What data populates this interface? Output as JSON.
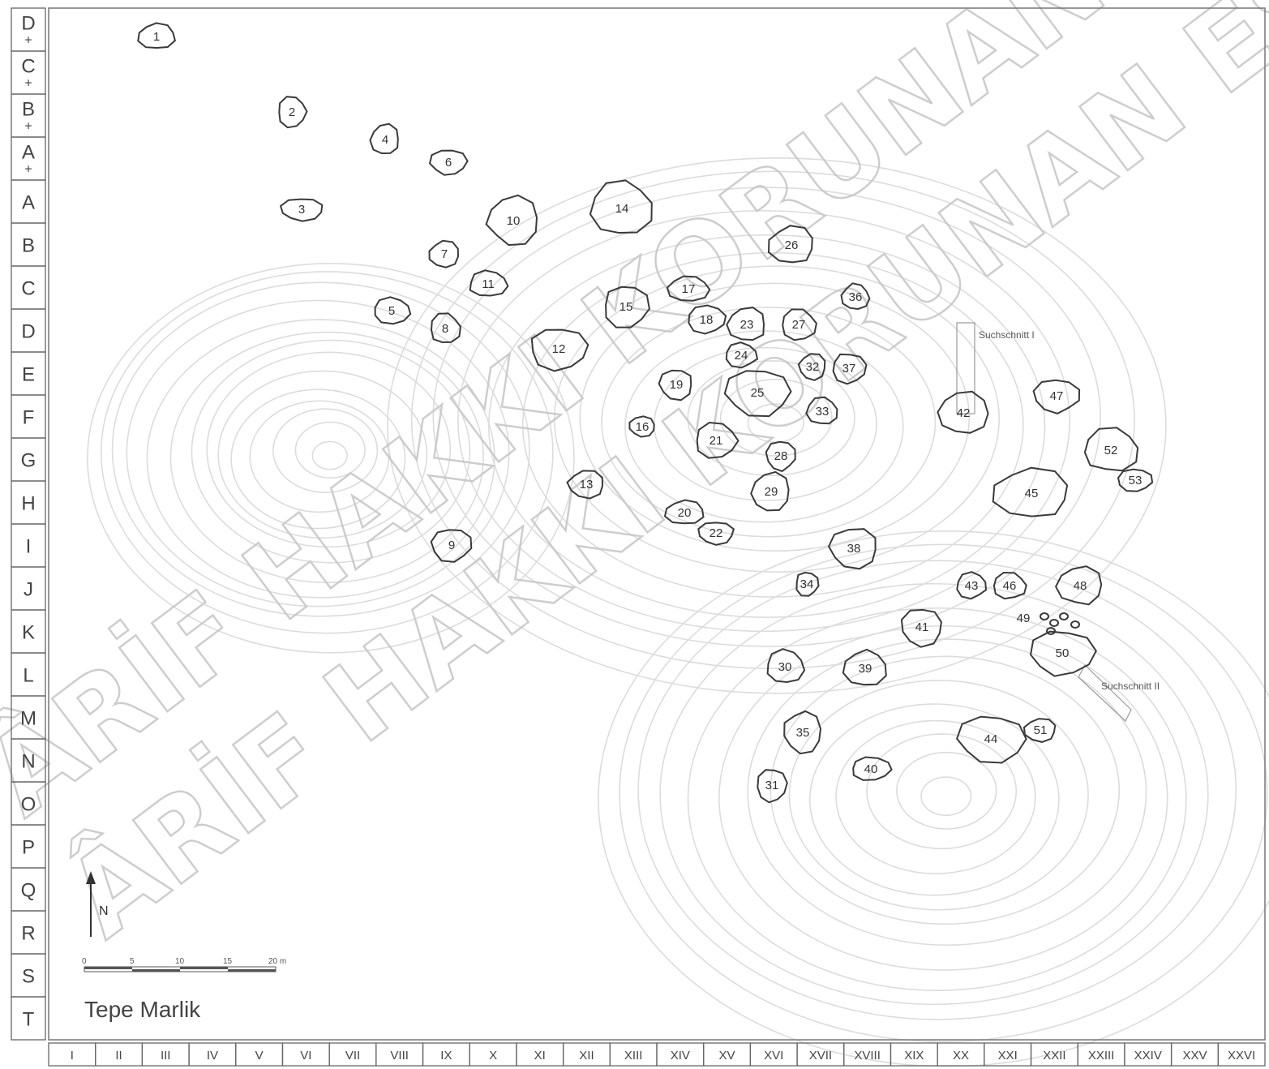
{
  "title": "Tepe Marlik",
  "north_label": "N",
  "scale": {
    "ticks": [
      "0",
      "5",
      "10",
      "15",
      "20 m"
    ]
  },
  "grid": {
    "rows": [
      "D+",
      "C+",
      "B+",
      "A+",
      "A",
      "B",
      "C",
      "D",
      "E",
      "F",
      "G",
      "H",
      "I",
      "J",
      "K",
      "L",
      "M",
      "N",
      "O",
      "P",
      "Q",
      "R",
      "S",
      "T"
    ],
    "columns": [
      "I",
      "II",
      "III",
      "IV",
      "V",
      "VI",
      "VII",
      "VIII",
      "IX",
      "X",
      "XI",
      "XII",
      "XIII",
      "XIV",
      "XV",
      "XVI",
      "XVII",
      "XVIII",
      "XIX",
      "XX",
      "XXI",
      "XXII",
      "XXIII",
      "XXIV",
      "XXV",
      "XXVI"
    ]
  },
  "trenches": [
    "Suchschnitt I",
    "Suchschnitt II"
  ],
  "tombs": [
    "1",
    "2",
    "3",
    "4",
    "5",
    "6",
    "7",
    "8",
    "9",
    "10",
    "11",
    "12",
    "13",
    "14",
    "15",
    "16",
    "17",
    "18",
    "19",
    "20",
    "21",
    "22",
    "23",
    "24",
    "25",
    "26",
    "27",
    "28",
    "29",
    "30",
    "31",
    "32",
    "33",
    "34",
    "35",
    "36",
    "37",
    "38",
    "39",
    "40",
    "41",
    "42",
    "43",
    "44",
    "45",
    "46",
    "47",
    "48",
    "49",
    "50",
    "51",
    "52",
    "53"
  ],
  "watermark": [
    "ÂRİF HAKKI KORUNAN ESER",
    "ÂRİF HAKKI KORUNAN ESER"
  ],
  "colors": {
    "ink": "#3a3a3a",
    "contour": "#d9d9d9",
    "watermark": "#c8c8c8"
  }
}
